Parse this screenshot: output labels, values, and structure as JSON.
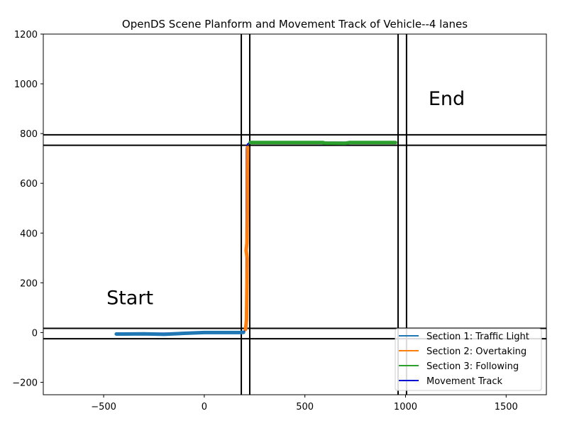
{
  "chart_data": {
    "type": "line",
    "title": "OpenDS Scene Planform and Movement Track of Vehicle--4 lanes",
    "xlabel": "",
    "ylabel": "",
    "xlim": [
      -800,
      1700
    ],
    "ylim": [
      -250,
      1200
    ],
    "xticks": [
      -500,
      0,
      500,
      1000,
      1500
    ],
    "yticks": [
      -200,
      0,
      200,
      400,
      600,
      800,
      1000,
      1200
    ],
    "road_lines": {
      "vertical_x": [
        184,
        226,
        963,
        1005
      ],
      "horizontal_y": [
        -25,
        17,
        753,
        795
      ]
    },
    "annotations": [
      {
        "text": "Start",
        "x": -500,
        "y": 100
      },
      {
        "text": "End",
        "x": 1100,
        "y": 900
      }
    ],
    "series": [
      {
        "name": "Section 1: Traffic Light",
        "color": "#1f77b4",
        "points": [
          [
            -437,
            -6
          ],
          [
            -400,
            -6
          ],
          [
            -300,
            -5
          ],
          [
            -200,
            -7
          ],
          [
            -100,
            -3
          ],
          [
            0,
            0
          ],
          [
            100,
            0
          ],
          [
            180,
            0
          ],
          [
            195,
            1
          ]
        ]
      },
      {
        "name": "Section 2: Overtaking",
        "color": "#ff7f0e",
        "points": [
          [
            205,
            12
          ],
          [
            210,
            50
          ],
          [
            212,
            200
          ],
          [
            213,
            300
          ],
          [
            208,
            330
          ],
          [
            212,
            360
          ],
          [
            214,
            500
          ],
          [
            214,
            650
          ],
          [
            215,
            745
          ]
        ]
      },
      {
        "name": "Section 3: Following",
        "color": "#2ca02c",
        "points": [
          [
            228,
            764
          ],
          [
            400,
            764
          ],
          [
            590,
            764
          ],
          [
            600,
            762
          ],
          [
            700,
            761
          ],
          [
            720,
            764
          ],
          [
            950,
            764
          ]
        ]
      },
      {
        "name": "Movement Track",
        "color": "#0000cc",
        "points": [
          [
            -437,
            -6
          ],
          [
            195,
            1
          ],
          [
            205,
            12
          ],
          [
            208,
            25
          ],
          [
            210,
            740
          ],
          [
            215,
            758
          ],
          [
            228,
            764
          ],
          [
            950,
            764
          ]
        ]
      }
    ],
    "legend": {
      "position": "bottom-right",
      "entries": [
        "Section 1: Traffic Light",
        "Section 2: Overtaking",
        "Section 3: Following",
        "Movement Track"
      ]
    }
  }
}
